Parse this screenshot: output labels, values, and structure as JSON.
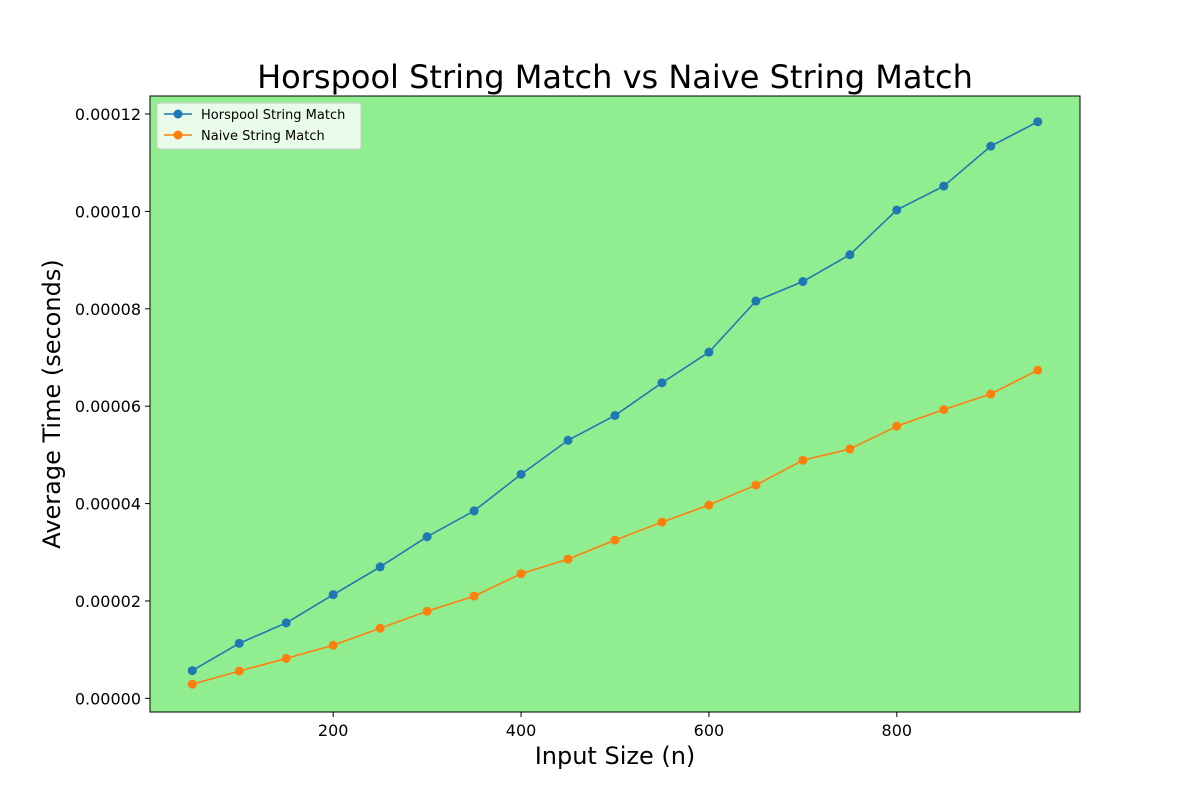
{
  "chart_data": {
    "type": "line",
    "title": "Horspool String Match vs Naive String Match",
    "xlabel": "Input Size (n)",
    "ylabel": "Average Time (seconds)",
    "xlim": [
      5,
      995
    ],
    "ylim": [
      -2.8e-06,
      0.0001237
    ],
    "x_ticks": [
      200,
      400,
      600,
      800
    ],
    "x_tick_labels": [
      "200",
      "400",
      "600",
      "800"
    ],
    "y_ticks": [
      0,
      2e-05,
      4e-05,
      6e-05,
      8e-05,
      0.0001,
      0.00012
    ],
    "y_tick_labels": [
      "0.00000",
      "0.00002",
      "0.00004",
      "0.00006",
      "0.00008",
      "0.00010",
      "0.00012"
    ],
    "grid": false,
    "legend_position": "top-left",
    "plot_background": "#90ee90",
    "x": [
      50,
      100,
      150,
      200,
      250,
      300,
      350,
      400,
      450,
      500,
      550,
      600,
      650,
      700,
      750,
      800,
      850,
      900,
      950
    ],
    "series": [
      {
        "name": "Horspool String Match",
        "color": "#1f77b4",
        "values": [
          5.7e-06,
          1.13e-05,
          1.55e-05,
          2.13e-05,
          2.7e-05,
          3.32e-05,
          3.85e-05,
          4.6e-05,
          5.3e-05,
          5.81e-05,
          6.48e-05,
          7.11e-05,
          8.16e-05,
          8.56e-05,
          9.11e-05,
          0.0001003,
          0.0001052,
          0.0001134,
          0.0001184
        ]
      },
      {
        "name": "Naive String Match",
        "color": "#ff7f0e",
        "values": [
          2.9e-06,
          5.6e-06,
          8.2e-06,
          1.09e-05,
          1.44e-05,
          1.79e-05,
          2.1e-05,
          2.56e-05,
          2.86e-05,
          3.25e-05,
          3.62e-05,
          3.97e-05,
          4.38e-05,
          4.89e-05,
          5.12e-05,
          5.59e-05,
          5.93e-05,
          6.25e-05,
          6.74e-05
        ]
      }
    ]
  }
}
